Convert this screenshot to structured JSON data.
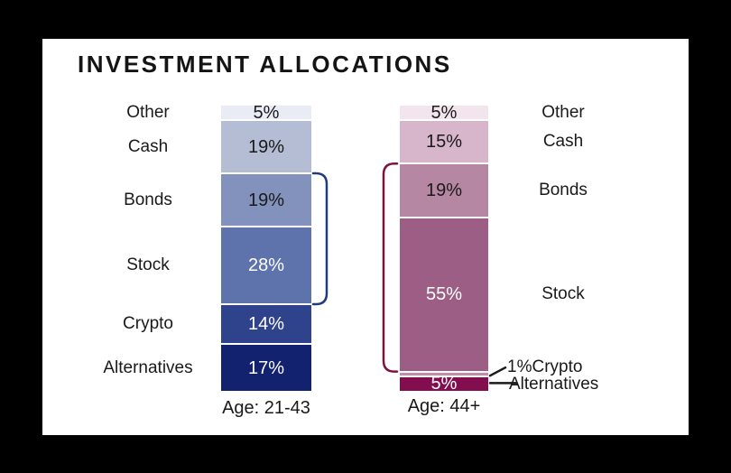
{
  "title": "INVESTMENT ALLOCATIONS",
  "frame_color": "#000000",
  "panel_color": "#ffffff",
  "text_color": "#1a1a1a",
  "chart_data": {
    "type": "bar",
    "variant": "stacked-percentage-columns",
    "unit": "%",
    "legend_position": "none",
    "grid": false,
    "columns": [
      {
        "name": "Age: 21-43",
        "label_side": "left",
        "bracket": {
          "from": "Bonds",
          "to": "Stock",
          "side": "right",
          "color": "#1e3b80"
        },
        "segments": [
          {
            "label": "Other",
            "value": 5,
            "display": "5%",
            "color": "#e9ecf5",
            "value_color": "#1a1a1a",
            "show_value": true,
            "outside_label": true,
            "callout": false
          },
          {
            "label": "Cash",
            "value": 19,
            "display": "19%",
            "color": "#b5bdd4",
            "value_color": "#1a1a1a",
            "show_value": true,
            "outside_label": true,
            "callout": false
          },
          {
            "label": "Bonds",
            "value": 19,
            "display": "19%",
            "color": "#8292bc",
            "value_color": "#1a1a1a",
            "show_value": true,
            "outside_label": true,
            "callout": false
          },
          {
            "label": "Stock",
            "value": 28,
            "display": "28%",
            "color": "#5e73ab",
            "value_color": "#ffffff",
            "show_value": true,
            "outside_label": true,
            "callout": false
          },
          {
            "label": "Crypto",
            "value": 14,
            "display": "14%",
            "color": "#2e438b",
            "value_color": "#ffffff",
            "show_value": true,
            "outside_label": true,
            "callout": false
          },
          {
            "label": "Alternatives",
            "value": 17,
            "display": "17%",
            "color": "#13226f",
            "value_color": "#ffffff",
            "show_value": true,
            "outside_label": true,
            "callout": false
          }
        ]
      },
      {
        "name": "Age: 44+",
        "label_side": "right",
        "bracket": {
          "from": "Bonds",
          "to": "Stock",
          "side": "left",
          "color": "#7c1240"
        },
        "segments": [
          {
            "label": "Other",
            "value": 5,
            "display": "5%",
            "color": "#f3e5ed",
            "value_color": "#1a1a1a",
            "show_value": true,
            "outside_label": true,
            "callout": false
          },
          {
            "label": "Cash",
            "value": 15,
            "display": "15%",
            "color": "#d7b5ca",
            "value_color": "#1a1a1a",
            "show_value": true,
            "outside_label": true,
            "callout": false
          },
          {
            "label": "Bonds",
            "value": 19,
            "display": "19%",
            "color": "#b687a2",
            "value_color": "#1a1a1a",
            "show_value": true,
            "outside_label": true,
            "callout": false
          },
          {
            "label": "Stock",
            "value": 55,
            "display": "55%",
            "color": "#9d5e85",
            "value_color": "#ffffff",
            "show_value": true,
            "outside_label": true,
            "callout": false
          },
          {
            "label": "Crypto",
            "value": 1,
            "display": "1%",
            "color": "#c08ea9",
            "value_color": "#1a1a1a",
            "show_value": false,
            "outside_label": false,
            "callout": true
          },
          {
            "label": "Alternatives",
            "value": 5,
            "display": "5%",
            "color": "#830e4f",
            "value_color": "#ffffff",
            "show_value": true,
            "outside_label": false,
            "callout": true
          }
        ]
      }
    ]
  }
}
